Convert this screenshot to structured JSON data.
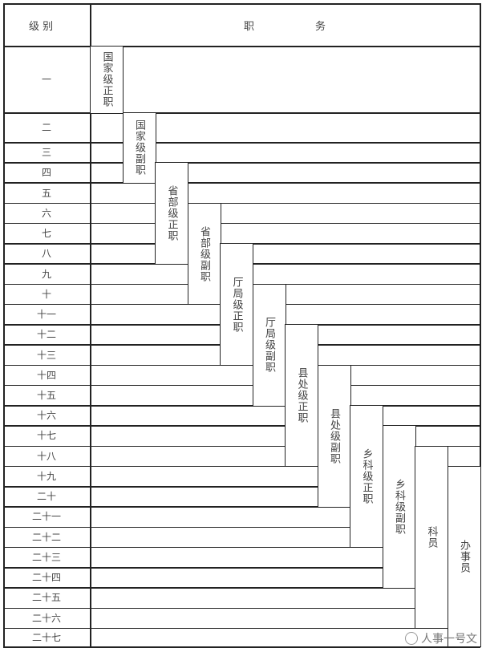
{
  "header": {
    "level_label": "级 别",
    "position_label_1": "职",
    "position_label_2": "务"
  },
  "levels": [
    "一",
    "二",
    "三",
    "四",
    "五",
    "六",
    "七",
    "八",
    "九",
    "十",
    "十一",
    "十二",
    "十三",
    "十四",
    "十五",
    "十六",
    "十七",
    "十八",
    "十九",
    "二十",
    "二十一",
    "二十二",
    "二十三",
    "二十四",
    "二十五",
    "二十六",
    "二十七"
  ],
  "positions": [
    {
      "label": "国家级正职",
      "from_level": 1,
      "to_level": 1
    },
    {
      "label": "国家级副职",
      "from_level": 2,
      "to_level": 4
    },
    {
      "label": "省部级正职",
      "from_level": 4,
      "to_level": 8
    },
    {
      "label": "省部级副职",
      "from_level": 6,
      "to_level": 10
    },
    {
      "label": "厅局级正职",
      "from_level": 8,
      "to_level": 13
    },
    {
      "label": "厅局级副职",
      "from_level": 10,
      "to_level": 15
    },
    {
      "label": "县处级正职",
      "from_level": 12,
      "to_level": 18
    },
    {
      "label": "县处级副职",
      "from_level": 14,
      "to_level": 20
    },
    {
      "label": "乡科级正职",
      "from_level": 16,
      "to_level": 22
    },
    {
      "label": "乡科级副职",
      "from_level": 17,
      "to_level": 24
    },
    {
      "label": "科员",
      "from_level": 18,
      "to_level": 26
    },
    {
      "label": "办事员",
      "from_level": 19,
      "to_level": 27
    }
  ],
  "watermark": {
    "text": "人事一号文",
    "icon": "wechat-official-account-icon"
  }
}
